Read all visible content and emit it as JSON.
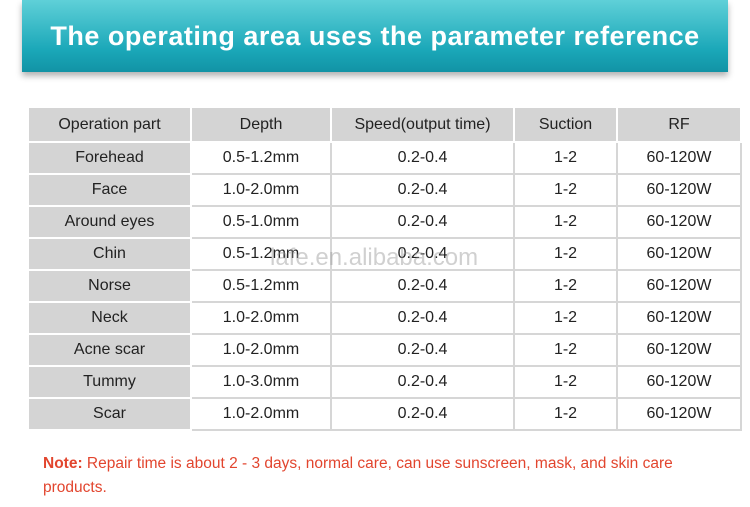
{
  "header": {
    "title": "The operating area uses the parameter reference"
  },
  "table": {
    "columns": [
      "Operation part",
      "Depth",
      "Speed(output time)",
      "Suction",
      "RF"
    ],
    "rows": [
      [
        "Forehead",
        "0.5-1.2mm",
        "0.2-0.4",
        "1-2",
        "60-120W"
      ],
      [
        "Face",
        "1.0-2.0mm",
        "0.2-0.4",
        "1-2",
        "60-120W"
      ],
      [
        "Around eyes",
        "0.5-1.0mm",
        "0.2-0.4",
        "1-2",
        "60-120W"
      ],
      [
        "Chin",
        "0.5-1.2mm",
        "0.2-0.4",
        "1-2",
        "60-120W"
      ],
      [
        "Norse",
        "0.5-1.2mm",
        "0.2-0.4",
        "1-2",
        "60-120W"
      ],
      [
        "Neck",
        "1.0-2.0mm",
        "0.2-0.4",
        "1-2",
        "60-120W"
      ],
      [
        "Acne scar",
        "1.0-2.0mm",
        "0.2-0.4",
        "1-2",
        "60-120W"
      ],
      [
        "Tummy",
        "1.0-3.0mm",
        "0.2-0.4",
        "1-2",
        "60-120W"
      ],
      [
        "Scar",
        "1.0-2.0mm",
        "0.2-0.4",
        "1-2",
        "60-120W"
      ]
    ]
  },
  "watermark": "lafe.en.alibaba.com",
  "note": {
    "label": "Note:",
    "text": "Repair time is about 2 - 3 days, normal care, can use sunscreen, mask, and skin care products."
  }
}
